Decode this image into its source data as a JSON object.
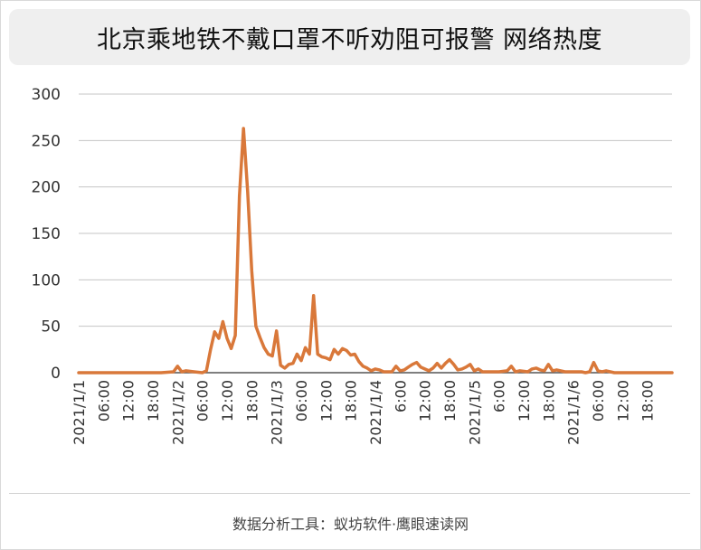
{
  "title": "北京乘地铁不戴口罩不听劝阻可报警 网络热度",
  "footer": "数据分析工具：蚁坊软件·鹰眼速读网",
  "colors": {
    "line": "#d9783a",
    "grid": "#c4c4c4",
    "axis": "#555555",
    "text": "#333333"
  },
  "chart_data": {
    "type": "line",
    "title": "北京乘地铁不戴口罩不听劝阻可报警 网络热度",
    "xlabel": "",
    "ylabel": "",
    "ylim": [
      0,
      300
    ],
    "yticks": [
      0,
      50,
      100,
      150,
      200,
      250,
      300
    ],
    "xlim": [
      0,
      144
    ],
    "x_unit": "hours from 2021/1/1 00:00",
    "xtick_labels": [
      {
        "x": 0,
        "label": "2021/1/1"
      },
      {
        "x": 6,
        "label": "06:00"
      },
      {
        "x": 12,
        "label": "12:00"
      },
      {
        "x": 18,
        "label": "18:00"
      },
      {
        "x": 24,
        "label": "2021/1/2"
      },
      {
        "x": 30,
        "label": "06:00"
      },
      {
        "x": 36,
        "label": "12:00"
      },
      {
        "x": 42,
        "label": "18:00"
      },
      {
        "x": 48,
        "label": "2021/1/3"
      },
      {
        "x": 54,
        "label": "06:00"
      },
      {
        "x": 60,
        "label": "12:00"
      },
      {
        "x": 66,
        "label": "18:00"
      },
      {
        "x": 72,
        "label": "2021/1/4"
      },
      {
        "x": 78,
        "label": "6:00"
      },
      {
        "x": 84,
        "label": "12:00"
      },
      {
        "x": 90,
        "label": "18:00"
      },
      {
        "x": 96,
        "label": "2021/1/5"
      },
      {
        "x": 102,
        "label": "6:00"
      },
      {
        "x": 108,
        "label": "12:00"
      },
      {
        "x": 114,
        "label": "18:00"
      },
      {
        "x": 120,
        "label": "2021/1/6"
      },
      {
        "x": 126,
        "label": "06:00"
      },
      {
        "x": 132,
        "label": "12:00"
      },
      {
        "x": 138,
        "label": "18:00"
      }
    ],
    "legend": "none",
    "grid": true,
    "series": [
      {
        "points": [
          [
            0,
            0
          ],
          [
            5,
            0
          ],
          [
            10,
            0
          ],
          [
            15,
            0
          ],
          [
            20,
            0
          ],
          [
            23,
            1
          ],
          [
            24,
            7
          ],
          [
            25,
            1
          ],
          [
            26,
            2
          ],
          [
            28,
            1
          ],
          [
            30,
            0
          ],
          [
            31,
            2
          ],
          [
            32,
            25
          ],
          [
            33,
            44
          ],
          [
            34,
            37
          ],
          [
            35,
            55
          ],
          [
            36,
            37
          ],
          [
            37,
            26
          ],
          [
            38,
            40
          ],
          [
            39,
            190
          ],
          [
            40,
            263
          ],
          [
            41,
            195
          ],
          [
            42,
            110
          ],
          [
            43,
            50
          ],
          [
            44,
            38
          ],
          [
            45,
            27
          ],
          [
            46,
            20
          ],
          [
            47,
            18
          ],
          [
            48,
            45
          ],
          [
            49,
            8
          ],
          [
            50,
            5
          ],
          [
            51,
            9
          ],
          [
            52,
            10
          ],
          [
            53,
            20
          ],
          [
            54,
            13
          ],
          [
            55,
            27
          ],
          [
            56,
            20
          ],
          [
            57,
            83
          ],
          [
            58,
            20
          ],
          [
            59,
            17
          ],
          [
            60,
            16
          ],
          [
            61,
            14
          ],
          [
            62,
            25
          ],
          [
            63,
            20
          ],
          [
            64,
            26
          ],
          [
            65,
            24
          ],
          [
            66,
            19
          ],
          [
            67,
            20
          ],
          [
            68,
            12
          ],
          [
            69,
            7
          ],
          [
            70,
            5
          ],
          [
            71,
            2
          ],
          [
            72,
            4
          ],
          [
            73,
            3
          ],
          [
            74,
            1
          ],
          [
            75,
            1
          ],
          [
            76,
            1
          ],
          [
            77,
            7
          ],
          [
            78,
            2
          ],
          [
            79,
            3
          ],
          [
            80,
            6
          ],
          [
            81,
            9
          ],
          [
            82,
            11
          ],
          [
            83,
            6
          ],
          [
            84,
            4
          ],
          [
            85,
            2
          ],
          [
            86,
            5
          ],
          [
            87,
            10
          ],
          [
            88,
            5
          ],
          [
            89,
            10
          ],
          [
            90,
            14
          ],
          [
            91,
            9
          ],
          [
            92,
            3
          ],
          [
            93,
            4
          ],
          [
            94,
            6
          ],
          [
            95,
            9
          ],
          [
            96,
            2
          ],
          [
            97,
            4
          ],
          [
            98,
            1
          ],
          [
            100,
            1
          ],
          [
            102,
            1
          ],
          [
            104,
            2
          ],
          [
            105,
            7
          ],
          [
            106,
            1
          ],
          [
            107,
            2
          ],
          [
            109,
            1
          ],
          [
            110,
            4
          ],
          [
            111,
            5
          ],
          [
            112,
            3
          ],
          [
            113,
            2
          ],
          [
            114,
            9
          ],
          [
            115,
            2
          ],
          [
            116,
            3
          ],
          [
            118,
            1
          ],
          [
            120,
            1
          ],
          [
            122,
            1
          ],
          [
            123,
            0
          ],
          [
            124,
            1
          ],
          [
            125,
            11
          ],
          [
            126,
            2
          ],
          [
            127,
            1
          ],
          [
            128,
            2
          ],
          [
            130,
            0
          ],
          [
            144,
            0
          ]
        ]
      }
    ]
  }
}
